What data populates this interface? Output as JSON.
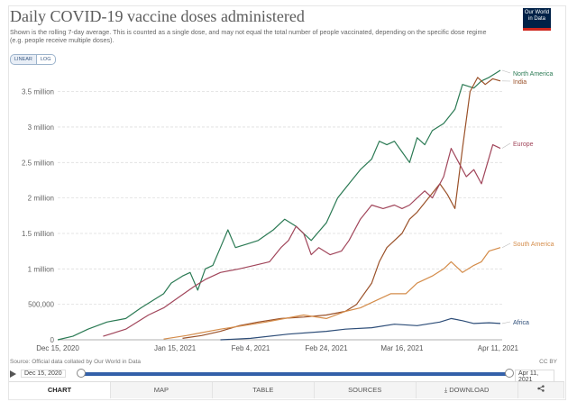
{
  "header": {
    "title": "Daily COVID-19 vaccine doses administered",
    "subtitle": "Shown is the rolling 7-day average. This is counted as a single dose, and may not equal the total number of people vaccinated, depending on the specific dose regime (e.g. people receive multiple doses).",
    "logo_line1": "Our World",
    "logo_line2": "in Data",
    "scale_linear": "LINEAR",
    "scale_log": "LOG"
  },
  "footer": {
    "source": "Source: Official data collated by Our World in Data",
    "license": "CC BY"
  },
  "timeline": {
    "start_label": "Dec 15, 2020",
    "end_label": "Apr 11, 2021"
  },
  "tabs": {
    "chart": "CHART",
    "map": "MAP",
    "table": "TABLE",
    "sources": "SOURCES",
    "download": "DOWNLOAD",
    "download_icon": "⤓",
    "share_icon": "share-icon"
  },
  "chart_data": {
    "type": "line",
    "ylim": [
      0,
      3800000
    ],
    "y_ticks": [
      {
        "value": 0,
        "label": "0"
      },
      {
        "value": 500000,
        "label": "500,000"
      },
      {
        "value": 1000000,
        "label": "1 million"
      },
      {
        "value": 1500000,
        "label": "1.5 million"
      },
      {
        "value": 2000000,
        "label": "2 million"
      },
      {
        "value": 2500000,
        "label": "2.5 million"
      },
      {
        "value": 3000000,
        "label": "3 million"
      },
      {
        "value": 3500000,
        "label": "3.5 million"
      }
    ],
    "x_range": [
      "2020-12-15",
      "2021-04-11"
    ],
    "x_ticks": [
      {
        "date": "2020-12-15",
        "label": "Dec 15, 2020"
      },
      {
        "date": "2021-01-15",
        "label": "Jan 15, 2021"
      },
      {
        "date": "2021-02-04",
        "label": "Feb 4, 2021"
      },
      {
        "date": "2021-02-24",
        "label": "Feb 24, 2021"
      },
      {
        "date": "2021-03-16",
        "label": "Mar 16, 2021"
      },
      {
        "date": "2021-04-11",
        "label": "Apr 11, 2021"
      }
    ],
    "grid": "horizontal-dashed",
    "legend": "end-of-line labels",
    "series": [
      {
        "name": "North America",
        "color": "#2b7a54",
        "points": [
          [
            "2020-12-15",
            0
          ],
          [
            "2020-12-19",
            50000
          ],
          [
            "2020-12-23",
            150000
          ],
          [
            "2020-12-28",
            250000
          ],
          [
            "2021-01-02",
            300000
          ],
          [
            "2021-01-06",
            450000
          ],
          [
            "2021-01-09",
            550000
          ],
          [
            "2021-01-12",
            650000
          ],
          [
            "2021-01-14",
            800000
          ],
          [
            "2021-01-17",
            900000
          ],
          [
            "2021-01-19",
            950000
          ],
          [
            "2021-01-21",
            700000
          ],
          [
            "2021-01-23",
            1000000
          ],
          [
            "2021-01-25",
            1050000
          ],
          [
            "2021-01-27",
            1300000
          ],
          [
            "2021-01-29",
            1550000
          ],
          [
            "2021-01-31",
            1300000
          ],
          [
            "2021-02-03",
            1350000
          ],
          [
            "2021-02-06",
            1400000
          ],
          [
            "2021-02-10",
            1550000
          ],
          [
            "2021-02-13",
            1700000
          ],
          [
            "2021-02-16",
            1600000
          ],
          [
            "2021-02-18",
            1500000
          ],
          [
            "2021-02-20",
            1400000
          ],
          [
            "2021-02-24",
            1650000
          ],
          [
            "2021-02-27",
            2000000
          ],
          [
            "2021-03-02",
            2200000
          ],
          [
            "2021-03-05",
            2400000
          ],
          [
            "2021-03-08",
            2550000
          ],
          [
            "2021-03-10",
            2800000
          ],
          [
            "2021-03-12",
            2750000
          ],
          [
            "2021-03-14",
            2800000
          ],
          [
            "2021-03-16",
            2650000
          ],
          [
            "2021-03-18",
            2500000
          ],
          [
            "2021-03-20",
            2850000
          ],
          [
            "2021-03-22",
            2750000
          ],
          [
            "2021-03-24",
            2950000
          ],
          [
            "2021-03-27",
            3050000
          ],
          [
            "2021-03-30",
            3250000
          ],
          [
            "2021-04-01",
            3600000
          ],
          [
            "2021-04-04",
            3550000
          ],
          [
            "2021-04-06",
            3650000
          ],
          [
            "2021-04-08",
            3700000
          ],
          [
            "2021-04-11",
            3800000
          ]
        ]
      },
      {
        "name": "India",
        "color": "#9a5129",
        "points": [
          [
            "2021-01-17",
            20000
          ],
          [
            "2021-01-22",
            60000
          ],
          [
            "2021-01-27",
            120000
          ],
          [
            "2021-02-01",
            200000
          ],
          [
            "2021-02-06",
            250000
          ],
          [
            "2021-02-12",
            300000
          ],
          [
            "2021-02-18",
            320000
          ],
          [
            "2021-02-24",
            350000
          ],
          [
            "2021-03-01",
            400000
          ],
          [
            "2021-03-04",
            500000
          ],
          [
            "2021-03-08",
            800000
          ],
          [
            "2021-03-10",
            1100000
          ],
          [
            "2021-03-12",
            1300000
          ],
          [
            "2021-03-14",
            1400000
          ],
          [
            "2021-03-16",
            1500000
          ],
          [
            "2021-03-18",
            1700000
          ],
          [
            "2021-03-20",
            1800000
          ],
          [
            "2021-03-23",
            2000000
          ],
          [
            "2021-03-26",
            2200000
          ],
          [
            "2021-03-28",
            2050000
          ],
          [
            "2021-03-30",
            1850000
          ],
          [
            "2021-04-01",
            2700000
          ],
          [
            "2021-04-03",
            3500000
          ],
          [
            "2021-04-05",
            3700000
          ],
          [
            "2021-04-07",
            3600000
          ],
          [
            "2021-04-09",
            3680000
          ],
          [
            "2021-04-11",
            3650000
          ]
        ]
      },
      {
        "name": "Europe",
        "color": "#a1465b",
        "points": [
          [
            "2020-12-27",
            50000
          ],
          [
            "2021-01-02",
            150000
          ],
          [
            "2021-01-08",
            350000
          ],
          [
            "2021-01-12",
            450000
          ],
          [
            "2021-01-16",
            600000
          ],
          [
            "2021-01-20",
            750000
          ],
          [
            "2021-01-23",
            850000
          ],
          [
            "2021-01-27",
            950000
          ],
          [
            "2021-02-01",
            1000000
          ],
          [
            "2021-02-05",
            1050000
          ],
          [
            "2021-02-09",
            1100000
          ],
          [
            "2021-02-12",
            1300000
          ],
          [
            "2021-02-14",
            1400000
          ],
          [
            "2021-02-16",
            1600000
          ],
          [
            "2021-02-18",
            1500000
          ],
          [
            "2021-02-20",
            1200000
          ],
          [
            "2021-02-22",
            1300000
          ],
          [
            "2021-02-25",
            1200000
          ],
          [
            "2021-02-28",
            1250000
          ],
          [
            "2021-03-02",
            1400000
          ],
          [
            "2021-03-05",
            1700000
          ],
          [
            "2021-03-08",
            1900000
          ],
          [
            "2021-03-11",
            1850000
          ],
          [
            "2021-03-14",
            1900000
          ],
          [
            "2021-03-16",
            1850000
          ],
          [
            "2021-03-18",
            1900000
          ],
          [
            "2021-03-20",
            2000000
          ],
          [
            "2021-03-22",
            2100000
          ],
          [
            "2021-03-24",
            2000000
          ],
          [
            "2021-03-27",
            2300000
          ],
          [
            "2021-03-29",
            2700000
          ],
          [
            "2021-03-31",
            2500000
          ],
          [
            "2021-04-02",
            2300000
          ],
          [
            "2021-04-04",
            2400000
          ],
          [
            "2021-04-06",
            2200000
          ],
          [
            "2021-04-09",
            2750000
          ],
          [
            "2021-04-11",
            2700000
          ]
        ]
      },
      {
        "name": "South America",
        "color": "#d48c4a",
        "points": [
          [
            "2021-01-12",
            10000
          ],
          [
            "2021-01-18",
            60000
          ],
          [
            "2021-01-22",
            100000
          ],
          [
            "2021-01-27",
            150000
          ],
          [
            "2021-02-02",
            200000
          ],
          [
            "2021-02-08",
            250000
          ],
          [
            "2021-02-13",
            300000
          ],
          [
            "2021-02-18",
            350000
          ],
          [
            "2021-02-24",
            300000
          ],
          [
            "2021-03-01",
            400000
          ],
          [
            "2021-03-05",
            450000
          ],
          [
            "2021-03-09",
            550000
          ],
          [
            "2021-03-13",
            650000
          ],
          [
            "2021-03-17",
            650000
          ],
          [
            "2021-03-20",
            800000
          ],
          [
            "2021-03-24",
            900000
          ],
          [
            "2021-03-27",
            1000000
          ],
          [
            "2021-03-29",
            1100000
          ],
          [
            "2021-04-01",
            950000
          ],
          [
            "2021-04-04",
            1050000
          ],
          [
            "2021-04-06",
            1100000
          ],
          [
            "2021-04-08",
            1250000
          ],
          [
            "2021-04-11",
            1300000
          ]
        ]
      },
      {
        "name": "Africa",
        "color": "#2d4d78",
        "points": [
          [
            "2021-01-27",
            0
          ],
          [
            "2021-02-04",
            20000
          ],
          [
            "2021-02-14",
            80000
          ],
          [
            "2021-02-24",
            120000
          ],
          [
            "2021-03-01",
            150000
          ],
          [
            "2021-03-08",
            170000
          ],
          [
            "2021-03-14",
            220000
          ],
          [
            "2021-03-20",
            200000
          ],
          [
            "2021-03-26",
            250000
          ],
          [
            "2021-03-29",
            300000
          ],
          [
            "2021-04-01",
            270000
          ],
          [
            "2021-04-04",
            230000
          ],
          [
            "2021-04-08",
            240000
          ],
          [
            "2021-04-11",
            230000
          ]
        ]
      }
    ]
  }
}
